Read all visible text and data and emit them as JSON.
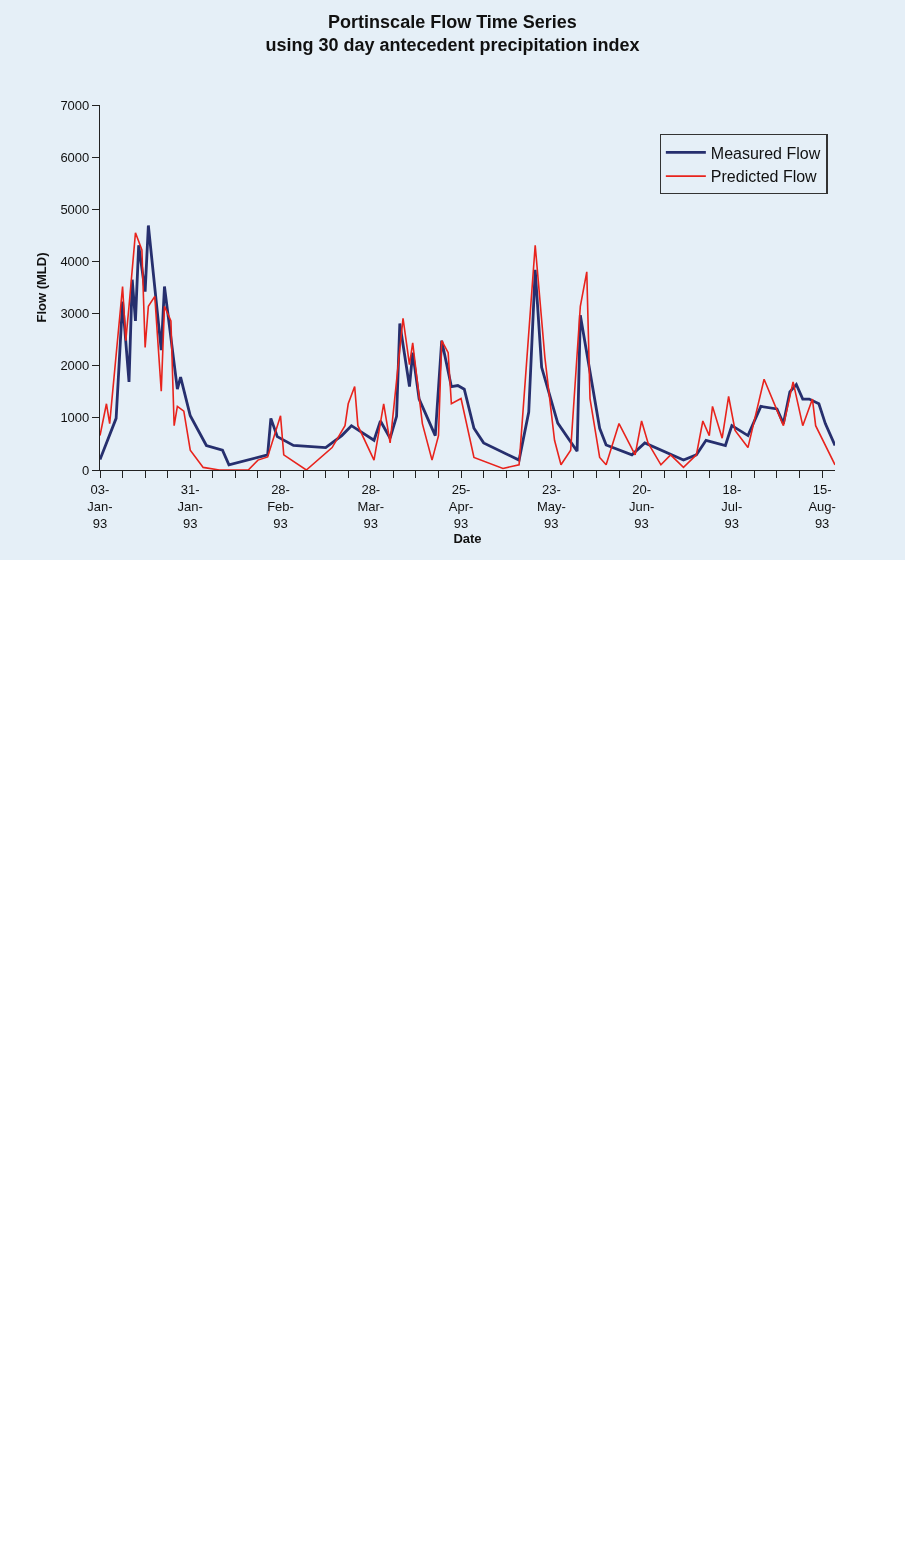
{
  "chart_data": {
    "type": "line",
    "title": "Portinscale Flow Time Series",
    "subtitle": "using 30 day antecedent precipitation index",
    "xlabel": "Date",
    "ylabel": "Flow (MLD)",
    "xlim": [
      "1993-01-03",
      "1993-08-19"
    ],
    "xticks": [
      {
        "value": "1993-01-03",
        "label": "03-\nJan-\n93"
      },
      {
        "value": "1993-01-10",
        "label": null
      },
      {
        "value": "1993-01-17",
        "label": null
      },
      {
        "value": "1993-01-24",
        "label": null
      },
      {
        "value": "1993-01-31",
        "label": "31-\nJan-\n93"
      },
      {
        "value": "1993-02-07",
        "label": null
      },
      {
        "value": "1993-02-14",
        "label": null
      },
      {
        "value": "1993-02-21",
        "label": null
      },
      {
        "value": "1993-02-28",
        "label": "28-\nFeb-\n93"
      },
      {
        "value": "1993-03-07",
        "label": null
      },
      {
        "value": "1993-03-14",
        "label": null
      },
      {
        "value": "1993-03-21",
        "label": null
      },
      {
        "value": "1993-03-28",
        "label": "28-\nMar-\n93"
      },
      {
        "value": "1993-04-04",
        "label": null
      },
      {
        "value": "1993-04-11",
        "label": null
      },
      {
        "value": "1993-04-18",
        "label": null
      },
      {
        "value": "1993-04-25",
        "label": "25-\nApr-\n93"
      },
      {
        "value": "1993-05-02",
        "label": null
      },
      {
        "value": "1993-05-09",
        "label": null
      },
      {
        "value": "1993-05-16",
        "label": null
      },
      {
        "value": "1993-05-23",
        "label": "23-\nMay-\n93"
      },
      {
        "value": "1993-05-30",
        "label": null
      },
      {
        "value": "1993-06-06",
        "label": null
      },
      {
        "value": "1993-06-13",
        "label": null
      },
      {
        "value": "1993-06-20",
        "label": "20-\nJun-\n93"
      },
      {
        "value": "1993-06-27",
        "label": null
      },
      {
        "value": "1993-07-04",
        "label": null
      },
      {
        "value": "1993-07-11",
        "label": null
      },
      {
        "value": "1993-07-18",
        "label": "18-\nJul-\n93"
      },
      {
        "value": "1993-07-25",
        "label": null
      },
      {
        "value": "1993-08-01",
        "label": null
      },
      {
        "value": "1993-08-08",
        "label": null
      },
      {
        "value": "1993-08-15",
        "label": "15-\nAug-\n93"
      }
    ],
    "ylim": [
      0,
      7000
    ],
    "yticks": [
      0,
      1000,
      2000,
      3000,
      4000,
      5000,
      6000,
      7000
    ],
    "grid": false,
    "legend": "top right",
    "marker": "none",
    "line_style": "solid",
    "series": [
      {
        "name": "Measured Flow",
        "color": "#262f6e",
        "x": [
          "1993-01-03",
          "1993-01-08",
          "1993-01-10",
          "1993-01-12",
          "1993-01-13",
          "1993-01-14",
          "1993-01-15",
          "1993-01-17",
          "1993-01-18",
          "1993-01-22",
          "1993-01-23",
          "1993-01-27",
          "1993-01-28",
          "1993-01-31",
          "1993-02-05",
          "1993-02-10",
          "1993-02-12",
          "1993-02-24",
          "1993-02-25",
          "1993-02-27",
          "1993-03-04",
          "1993-03-14",
          "1993-03-19",
          "1993-03-22",
          "1993-03-29",
          "1993-03-31",
          "1993-04-03",
          "1993-04-05",
          "1993-04-06",
          "1993-04-09",
          "1993-04-10",
          "1993-04-12",
          "1993-04-17",
          "1993-04-19",
          "1993-04-22",
          "1993-04-24",
          "1993-04-26",
          "1993-04-29",
          "1993-05-02",
          "1993-05-13",
          "1993-05-16",
          "1993-05-18",
          "1993-05-20",
          "1993-05-25",
          "1993-05-31",
          "1993-06-01",
          "1993-06-07",
          "1993-06-09",
          "1993-06-17",
          "1993-06-21",
          "1993-07-03",
          "1993-07-07",
          "1993-07-10",
          "1993-07-16",
          "1993-07-18",
          "1993-07-23",
          "1993-07-27",
          "1993-08-01",
          "1993-08-03",
          "1993-08-05",
          "1993-08-07",
          "1993-08-09",
          "1993-08-11",
          "1993-08-14",
          "1993-08-16",
          "1993-08-19"
        ],
        "values": [
          200,
          990,
          3230,
          1690,
          3650,
          2860,
          4310,
          3420,
          4690,
          2300,
          3520,
          1550,
          1780,
          1040,
          470,
          380,
          100,
          290,
          990,
          640,
          470,
          430,
          660,
          850,
          570,
          940,
          610,
          1030,
          2810,
          1600,
          2250,
          1360,
          660,
          2480,
          1600,
          1620,
          1550,
          800,
          520,
          190,
          1110,
          3840,
          1970,
          900,
          360,
          2970,
          800,
          480,
          290,
          520,
          190,
          290,
          570,
          470,
          850,
          660,
          1220,
          1170,
          890,
          1500,
          1640,
          1360,
          1360,
          1270,
          890,
          470
        ]
      },
      {
        "name": "Predicted Flow",
        "color": "#e8231c",
        "x": [
          "1993-01-03",
          "1993-01-05",
          "1993-01-06",
          "1993-01-10",
          "1993-01-11",
          "1993-01-12",
          "1993-01-14",
          "1993-01-16",
          "1993-01-17",
          "1993-01-18",
          "1993-01-20",
          "1993-01-22",
          "1993-01-23",
          "1993-01-25",
          "1993-01-26",
          "1993-01-27",
          "1993-01-29",
          "1993-01-31",
          "1993-02-04",
          "1993-02-09",
          "1993-02-18",
          "1993-02-21",
          "1993-02-24",
          "1993-02-28",
          "1993-03-01",
          "1993-03-08",
          "1993-03-16",
          "1993-03-20",
          "1993-03-21",
          "1993-03-23",
          "1993-03-24",
          "1993-03-29",
          "1993-04-01",
          "1993-04-03",
          "1993-04-07",
          "1993-04-09",
          "1993-04-10",
          "1993-04-13",
          "1993-04-16",
          "1993-04-18",
          "1993-04-19",
          "1993-04-21",
          "1993-04-22",
          "1993-04-25",
          "1993-04-29",
          "1993-05-08",
          "1993-05-13",
          "1993-05-18",
          "1993-05-21",
          "1993-05-24",
          "1993-05-26",
          "1993-05-29",
          "1993-06-01",
          "1993-06-03",
          "1993-06-04",
          "1993-06-07",
          "1993-06-09",
          "1993-06-13",
          "1993-06-18",
          "1993-06-20",
          "1993-06-22",
          "1993-06-26",
          "1993-06-29",
          "1993-07-03",
          "1993-07-07",
          "1993-07-09",
          "1993-07-11",
          "1993-07-12",
          "1993-07-15",
          "1993-07-17",
          "1993-07-19",
          "1993-07-23",
          "1993-07-28",
          "1993-08-03",
          "1993-08-06",
          "1993-08-09",
          "1993-08-12",
          "1993-08-13",
          "1993-08-19"
        ],
        "values": [
          660,
          1270,
          890,
          3520,
          2480,
          3140,
          4550,
          4220,
          2350,
          3140,
          3330,
          1510,
          3140,
          2860,
          850,
          1220,
          1130,
          380,
          50,
          0,
          0,
          190,
          250,
          1040,
          290,
          0,
          430,
          850,
          1270,
          1600,
          850,
          190,
          1270,
          520,
          2910,
          2020,
          2440,
          890,
          190,
          660,
          2480,
          2250,
          1270,
          1370,
          240,
          30,
          100,
          4310,
          2160,
          570,
          100,
          380,
          3140,
          3800,
          1370,
          240,
          100,
          890,
          290,
          940,
          520,
          100,
          290,
          50,
          290,
          940,
          660,
          1220,
          610,
          1410,
          760,
          430,
          1740,
          850,
          1690,
          850,
          1360,
          850,
          100
        ]
      }
    ]
  }
}
